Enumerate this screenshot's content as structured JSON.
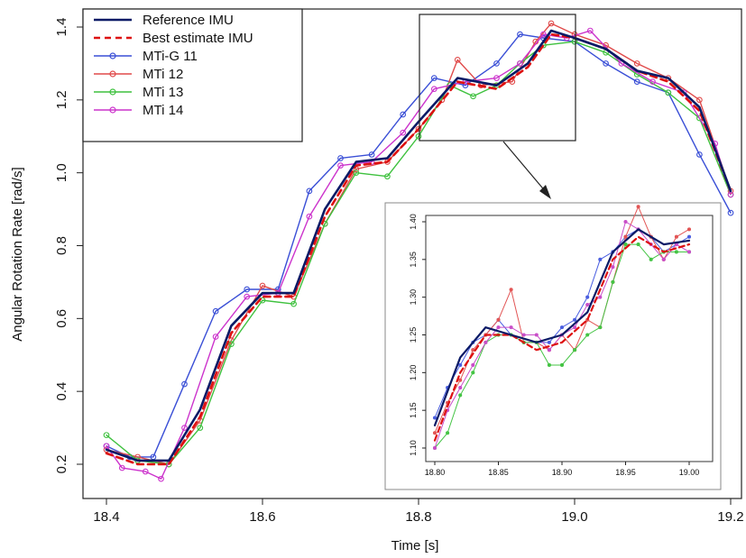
{
  "chart_data": [
    {
      "type": "line",
      "title": "",
      "xlabel": "Time [s]",
      "ylabel": "Angular Rotation Rate [rad/s]",
      "xlim": [
        18.4,
        19.2
      ],
      "ylim": [
        0.2,
        1.4
      ],
      "x_ticks": [
        "18.4",
        "18.6",
        "18.8",
        "19.0",
        "19.2"
      ],
      "y_ticks": [
        "0.2",
        "0.4",
        "0.6",
        "0.8",
        "1.0",
        "1.2",
        "1.4"
      ],
      "legend": {
        "placement": "top-left",
        "entries": [
          "Reference IMU",
          "Best estimate IMU",
          "MTi-G 11",
          "MTi 12",
          "MTi 13",
          "MTi 14"
        ]
      },
      "grid": false,
      "series": [
        {
          "name": "Reference IMU",
          "color": "#0a1a66",
          "style": "solid",
          "marker": "none",
          "x": [
            18.4,
            18.44,
            18.48,
            18.52,
            18.56,
            18.6,
            18.64,
            18.68,
            18.72,
            18.76,
            18.8,
            18.85,
            18.9,
            18.94,
            18.97,
            19.0,
            19.04,
            19.08,
            19.12,
            19.16,
            19.2
          ],
          "y": [
            0.24,
            0.21,
            0.21,
            0.35,
            0.58,
            0.67,
            0.67,
            0.9,
            1.03,
            1.04,
            1.14,
            1.26,
            1.24,
            1.3,
            1.39,
            1.37,
            1.34,
            1.28,
            1.26,
            1.18,
            0.95
          ]
        },
        {
          "name": "Best estimate IMU",
          "color": "#dd1111",
          "style": "dashed",
          "marker": "none",
          "x": [
            18.4,
            18.44,
            18.48,
            18.52,
            18.56,
            18.6,
            18.64,
            18.68,
            18.72,
            18.76,
            18.8,
            18.85,
            18.9,
            18.94,
            18.97,
            19.0,
            19.04,
            19.08,
            19.12,
            19.16,
            19.2
          ],
          "y": [
            0.23,
            0.2,
            0.2,
            0.33,
            0.56,
            0.66,
            0.66,
            0.88,
            1.02,
            1.03,
            1.12,
            1.25,
            1.23,
            1.29,
            1.38,
            1.37,
            1.34,
            1.28,
            1.25,
            1.17,
            0.95
          ]
        },
        {
          "name": "MTi-G 11",
          "color": "#3a4fd6",
          "style": "solid",
          "marker": "circle",
          "x": [
            18.4,
            18.43,
            18.46,
            18.5,
            18.54,
            18.58,
            18.62,
            18.66,
            18.7,
            18.74,
            18.78,
            18.82,
            18.86,
            18.9,
            18.93,
            18.96,
            19.0,
            19.04,
            19.08,
            19.12,
            19.16,
            19.2
          ],
          "y": [
            0.25,
            0.22,
            0.22,
            0.42,
            0.62,
            0.68,
            0.68,
            0.95,
            1.04,
            1.05,
            1.16,
            1.26,
            1.24,
            1.3,
            1.38,
            1.37,
            1.36,
            1.3,
            1.25,
            1.22,
            1.05,
            0.89
          ]
        },
        {
          "name": "MTi 12",
          "color": "#e04a4a",
          "style": "solid",
          "marker": "circle",
          "x": [
            18.4,
            18.44,
            18.48,
            18.52,
            18.56,
            18.6,
            18.64,
            18.68,
            18.72,
            18.76,
            18.8,
            18.83,
            18.85,
            18.88,
            18.92,
            18.95,
            18.97,
            19.0,
            19.04,
            19.08,
            19.12,
            19.16,
            19.2
          ],
          "y": [
            0.24,
            0.22,
            0.2,
            0.32,
            0.54,
            0.69,
            0.66,
            0.86,
            1.01,
            1.03,
            1.12,
            1.2,
            1.31,
            1.24,
            1.25,
            1.36,
            1.41,
            1.38,
            1.35,
            1.3,
            1.26,
            1.2,
            0.95
          ]
        },
        {
          "name": "MTi 13",
          "color": "#3ec13e",
          "style": "solid",
          "marker": "circle",
          "x": [
            18.4,
            18.44,
            18.48,
            18.52,
            18.56,
            18.6,
            18.64,
            18.68,
            18.72,
            18.76,
            18.8,
            18.84,
            18.87,
            18.9,
            18.93,
            18.96,
            19.0,
            19.04,
            19.08,
            19.12,
            19.16,
            19.2
          ],
          "y": [
            0.28,
            0.21,
            0.2,
            0.3,
            0.53,
            0.65,
            0.64,
            0.86,
            1.0,
            0.99,
            1.1,
            1.24,
            1.21,
            1.24,
            1.3,
            1.35,
            1.36,
            1.33,
            1.27,
            1.22,
            1.15,
            0.94
          ]
        },
        {
          "name": "MTi 14",
          "color": "#cc33cc",
          "style": "solid",
          "marker": "circle",
          "x": [
            18.4,
            18.42,
            18.45,
            18.47,
            18.5,
            18.54,
            18.58,
            18.62,
            18.66,
            18.7,
            18.74,
            18.78,
            18.82,
            18.86,
            18.9,
            18.93,
            18.96,
            18.99,
            19.02,
            19.06,
            19.1,
            19.14,
            19.18,
            19.2
          ],
          "y": [
            0.25,
            0.19,
            0.18,
            0.16,
            0.3,
            0.55,
            0.66,
            0.67,
            0.88,
            1.02,
            1.03,
            1.11,
            1.23,
            1.25,
            1.26,
            1.3,
            1.38,
            1.37,
            1.39,
            1.3,
            1.25,
            1.22,
            1.08,
            0.94
          ]
        }
      ]
    },
    {
      "type": "line",
      "title": "",
      "xlabel": "",
      "ylabel": "",
      "xlim": [
        18.8,
        19.0
      ],
      "ylim": [
        1.1,
        1.4
      ],
      "x_ticks": [
        "18.80",
        "18.85",
        "18.90",
        "18.95",
        "19.00"
      ],
      "y_ticks": [
        "1.10",
        "1.15",
        "1.20",
        "1.25",
        "1.30",
        "1.35",
        "1.40"
      ],
      "grid": false,
      "series": [
        {
          "color": "#0a1a66",
          "style": "solid",
          "marker": "none",
          "x": [
            18.8,
            18.82,
            18.84,
            18.86,
            18.88,
            18.9,
            18.92,
            18.94,
            18.96,
            18.98,
            19.0
          ],
          "y": [
            1.13,
            1.22,
            1.26,
            1.25,
            1.24,
            1.25,
            1.28,
            1.36,
            1.39,
            1.37,
            1.375
          ]
        },
        {
          "color": "#dd1111",
          "style": "dashed",
          "marker": "none",
          "x": [
            18.8,
            18.82,
            18.84,
            18.86,
            18.88,
            18.9,
            18.92,
            18.94,
            18.96,
            18.98,
            19.0
          ],
          "y": [
            1.11,
            1.2,
            1.25,
            1.25,
            1.23,
            1.24,
            1.27,
            1.35,
            1.38,
            1.36,
            1.37
          ]
        },
        {
          "color": "#4a5ee0",
          "style": "solid",
          "marker": "dot",
          "x": [
            18.8,
            18.81,
            18.82,
            18.83,
            18.84,
            18.85,
            18.86,
            18.87,
            18.88,
            18.89,
            18.9,
            18.91,
            18.92,
            18.93,
            18.94,
            18.95,
            18.96,
            18.97,
            18.98,
            18.99,
            19.0
          ],
          "y": [
            1.14,
            1.18,
            1.21,
            1.24,
            1.25,
            1.27,
            1.25,
            1.24,
            1.24,
            1.24,
            1.26,
            1.27,
            1.3,
            1.35,
            1.36,
            1.38,
            1.39,
            1.38,
            1.36,
            1.37,
            1.38
          ]
        },
        {
          "color": "#e25555",
          "style": "solid",
          "marker": "dot",
          "x": [
            18.8,
            18.81,
            18.82,
            18.83,
            18.84,
            18.85,
            18.86,
            18.87,
            18.88,
            18.89,
            18.9,
            18.91,
            18.92,
            18.93,
            18.94,
            18.95,
            18.96,
            18.97,
            18.98,
            18.99,
            19.0
          ],
          "y": [
            1.12,
            1.16,
            1.19,
            1.23,
            1.25,
            1.27,
            1.31,
            1.24,
            1.24,
            1.23,
            1.25,
            1.23,
            1.27,
            1.26,
            1.32,
            1.38,
            1.42,
            1.38,
            1.35,
            1.38,
            1.39
          ]
        },
        {
          "color": "#44c444",
          "style": "solid",
          "marker": "dot",
          "x": [
            18.8,
            18.81,
            18.82,
            18.83,
            18.84,
            18.85,
            18.86,
            18.87,
            18.88,
            18.89,
            18.9,
            18.91,
            18.92,
            18.93,
            18.94,
            18.95,
            18.96,
            18.97,
            18.98,
            18.99,
            19.0
          ],
          "y": [
            1.1,
            1.12,
            1.17,
            1.2,
            1.24,
            1.25,
            1.25,
            1.24,
            1.24,
            1.21,
            1.21,
            1.23,
            1.25,
            1.26,
            1.32,
            1.37,
            1.37,
            1.35,
            1.36,
            1.36,
            1.36
          ]
        },
        {
          "color": "#c94ec9",
          "style": "solid",
          "marker": "dot",
          "x": [
            18.8,
            18.81,
            18.82,
            18.83,
            18.84,
            18.85,
            18.86,
            18.87,
            18.88,
            18.89,
            18.9,
            18.91,
            18.92,
            18.93,
            18.94,
            18.95,
            18.96,
            18.97,
            18.98,
            18.99,
            19.0
          ],
          "y": [
            1.1,
            1.15,
            1.18,
            1.21,
            1.24,
            1.26,
            1.26,
            1.25,
            1.25,
            1.23,
            1.25,
            1.26,
            1.29,
            1.3,
            1.34,
            1.4,
            1.39,
            1.37,
            1.35,
            1.37,
            1.36
          ]
        }
      ]
    }
  ]
}
